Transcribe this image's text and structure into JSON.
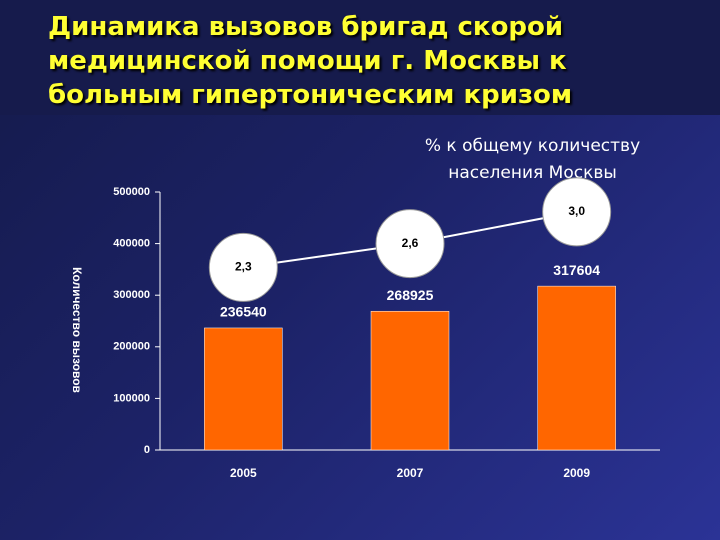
{
  "chart_data": {
    "type": "bar",
    "title": "Динамика вызовов бригад скорой медицинской помощи г. Москвы к больным гипертоническим кризом",
    "annotation": "% к общему количеству населения Москвы",
    "y_label": "Количество вызовов",
    "categories": [
      "2005",
      "2007",
      "2009"
    ],
    "series": [
      {
        "type": "bar",
        "color": "#ff6600",
        "values": [
          236540,
          268925,
          317604
        ]
      },
      {
        "type": "line",
        "axis": "y2",
        "color": "#ffffff",
        "values": [
          2.3,
          2.6,
          3.0
        ],
        "value_labels": [
          "2,3",
          "2,6",
          "3,0"
        ]
      }
    ],
    "ylim": [
      0,
      500000
    ],
    "yticks": [
      0,
      100000,
      200000,
      300000,
      400000,
      500000
    ],
    "y2lim": [
      0,
      3.25
    ]
  }
}
